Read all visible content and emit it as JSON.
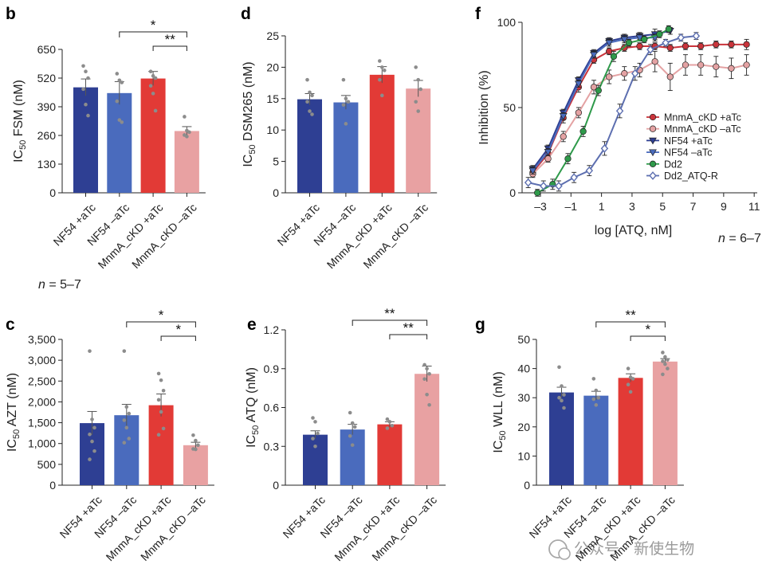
{
  "watermark": "公众号 · 新使生物",
  "notes": {
    "n_bc": "n = 5–7",
    "n_f": "n = 6–7"
  },
  "colors": {
    "nf54_plus": "#2e3f93",
    "nf54_minus": "#4a6bbd",
    "mnma_plus": "#e23a36",
    "mnma_minus": "#e8a1a2",
    "dd2": "#2e9a4a",
    "dd2_atqr": "#5d6fb0",
    "dots": "#8c8c8c",
    "line": "#222222"
  },
  "chart_data": [
    {
      "panel": "b",
      "type": "bar",
      "ylabel_pre": "IC",
      "ylabel_sub": "50",
      "ylabel_post": " FSM (nM)",
      "categories": [
        "NF54 +aTc",
        "NF54 –aTc",
        "MnmA_cKD +aTc",
        "MnmA_cKD –aTc"
      ],
      "values": [
        478,
        452,
        518,
        280
      ],
      "errors": [
        38,
        52,
        32,
        20
      ],
      "points": [
        [
          575,
          550,
          520,
          470,
          400,
          350
        ],
        [
          540,
          510,
          500,
          415,
          330,
          320
        ],
        [
          550,
          530,
          520,
          485,
          450,
          372
        ],
        [
          345,
          282,
          275,
          262,
          255
        ]
      ],
      "yticks": [
        "0",
        "130",
        "260",
        "390",
        "520",
        "650"
      ],
      "ylim": [
        0,
        650
      ],
      "brackets": [
        {
          "from": 1,
          "to": 3,
          "label": "*"
        },
        {
          "from": 2,
          "to": 3,
          "label": "**"
        }
      ]
    },
    {
      "panel": "d",
      "type": "bar",
      "ylabel_pre": "IC",
      "ylabel_sub": "50",
      "ylabel_post": " DSM265 (nM)",
      "categories": [
        "NF54 +aTc",
        "NF54 –aTc",
        "MnmA_cKD +aTc",
        "MnmA_cKD –aTc"
      ],
      "values": [
        14.9,
        14.4,
        18.8,
        16.6
      ],
      "errors": [
        0.9,
        1.1,
        1.3,
        1.3
      ],
      "points": [
        [
          18.0,
          16.0,
          15.5,
          14.5,
          13.0,
          12.5
        ],
        [
          18.0,
          15.0,
          14.5,
          14.0,
          11.0
        ],
        [
          21.0,
          20.0,
          19.5,
          18.0,
          15.5
        ],
        [
          20.0,
          18.0,
          16.5,
          14.5,
          13.0
        ]
      ],
      "yticks": [
        "0",
        "5",
        "10",
        "15",
        "20",
        "25"
      ],
      "ylim": [
        0,
        25
      ],
      "brackets": []
    },
    {
      "panel": "f",
      "type": "line",
      "xlabel": "log [ATQ, nM]",
      "ylabel": "Inhibition (%)",
      "xticks": [
        "–3",
        "–1",
        "1",
        "3",
        "5",
        "7",
        "9",
        "11"
      ],
      "yticks": [
        "0",
        "50",
        "100"
      ],
      "xlim": [
        -4.2,
        11.2
      ],
      "ylim": [
        0,
        100
      ],
      "series": [
        {
          "name": "MnmA_cKD +aTc",
          "marker": "circle",
          "color": "#c9343b",
          "x": [
            -3.5,
            -2.5,
            -1.5,
            -0.5,
            0.5,
            1.5,
            2.5,
            3.5,
            4.5,
            5.5,
            6.5,
            7.5,
            8.5,
            9.5,
            10.5
          ],
          "y": [
            12,
            23,
            44,
            62,
            78,
            83,
            85,
            86,
            86,
            85,
            86,
            86,
            87,
            87,
            87
          ],
          "err": [
            2,
            2,
            3,
            3,
            2,
            2,
            2,
            2,
            2,
            2,
            2,
            2,
            2,
            2,
            3
          ]
        },
        {
          "name": "MnmA_cKD –aTc",
          "marker": "circle",
          "color": "#e4a2a3",
          "x": [
            -3.5,
            -2.5,
            -1.5,
            -0.5,
            0.5,
            1.5,
            2.5,
            3.5,
            4.5,
            5.5,
            6.5,
            7.5,
            8.5,
            9.5,
            10.5
          ],
          "y": [
            11,
            20,
            33,
            47,
            62,
            68,
            70,
            72,
            77,
            68,
            75,
            75,
            74,
            73,
            75
          ],
          "err": [
            2,
            2,
            3,
            3,
            4,
            4,
            4,
            4,
            6,
            8,
            6,
            6,
            6,
            6,
            6
          ]
        },
        {
          "name": "NF54 +aTc",
          "marker": "triangle-down",
          "color": "#2e3f93",
          "x": [
            -3.5,
            -2.5,
            -1.5,
            -0.5,
            0.5,
            1.5,
            2.5,
            3.5,
            4.5,
            5.5
          ],
          "y": [
            14,
            26,
            47,
            66,
            82,
            89,
            91,
            92,
            93,
            95
          ],
          "err": [
            2,
            2,
            2,
            2,
            2,
            2,
            2,
            2,
            3,
            2
          ]
        },
        {
          "name": "NF54 –aTc",
          "marker": "triangle-down",
          "color": "#4a6bbd",
          "x": [
            -3.5,
            -2.5,
            -1.5,
            -0.5,
            0.5,
            1.5,
            2.5,
            3.5,
            4.5
          ],
          "y": [
            13,
            24,
            45,
            64,
            81,
            88,
            90,
            91,
            91
          ],
          "err": [
            2,
            2,
            2,
            2,
            2,
            2,
            2,
            2,
            2
          ]
        },
        {
          "name": "Dd2",
          "marker": "circle",
          "color": "#2e9a4a",
          "x": [
            -3.2,
            -2.2,
            -1.2,
            -0.2,
            0.8,
            1.8,
            2.8,
            3.8,
            4.8,
            5.4
          ],
          "y": [
            0,
            5,
            20,
            36,
            60,
            80,
            88,
            90,
            93,
            96
          ],
          "err": [
            2,
            3,
            3,
            3,
            3,
            3,
            2,
            2,
            2,
            2
          ]
        },
        {
          "name": "Dd2_ATQ-R",
          "marker": "diamond",
          "color": "#5d6fb0",
          "x": [
            -3.8,
            -2.8,
            -1.8,
            -0.8,
            0.2,
            1.2,
            2.2,
            3.2,
            4.2,
            5.2,
            6.2,
            7.2
          ],
          "y": [
            6,
            4,
            4,
            9,
            13,
            26,
            48,
            70,
            84,
            88,
            91,
            92
          ],
          "err": [
            3,
            3,
            3,
            3,
            3,
            4,
            4,
            4,
            3,
            2,
            2,
            2
          ]
        }
      ]
    },
    {
      "panel": "c",
      "type": "bar",
      "ylabel_pre": "IC",
      "ylabel_sub": "50",
      "ylabel_post": " AZT (nM)",
      "categories": [
        "NF54 +aTc",
        "NF54 –aTc",
        "MnmA_cKD +aTc",
        "MnmA_cKD –aTc"
      ],
      "values": [
        1490,
        1680,
        1920,
        960
      ],
      "errors": [
        280,
        260,
        270,
        70
      ],
      "points": [
        [
          3220,
          1580,
          1380,
          1220,
          1050,
          820,
          620
        ],
        [
          3220,
          1880,
          1720,
          1560,
          1380,
          1120,
          1020
        ],
        [
          2680,
          2520,
          2270,
          2050,
          1760,
          1360,
          1210
        ],
        [
          1200,
          1070,
          960,
          870,
          860
        ]
      ],
      "yticks": [
        "0",
        "500",
        "1,000",
        "1,500",
        "2,000",
        "2,500",
        "3,000",
        "3,500"
      ],
      "ylim": [
        0,
        3500
      ],
      "brackets": [
        {
          "from": 1,
          "to": 3,
          "label": "*"
        },
        {
          "from": 2,
          "to": 3,
          "label": "*"
        }
      ]
    },
    {
      "panel": "e",
      "type": "bar",
      "ylabel_pre": "IC",
      "ylabel_sub": "50",
      "ylabel_post": " ATQ (nM)",
      "categories": [
        "NF54 +aTc",
        "NF54 –aTc",
        "MnmA_cKD +aTc",
        "MnmA_cKD –aTc"
      ],
      "values": [
        0.39,
        0.43,
        0.47,
        0.86
      ],
      "errors": [
        0.03,
        0.04,
        0.02,
        0.06
      ],
      "points": [
        [
          0.52,
          0.49,
          0.4,
          0.36,
          0.3
        ],
        [
          0.56,
          0.48,
          0.45,
          0.38,
          0.31
        ],
        [
          0.51,
          0.49,
          0.46,
          0.44
        ],
        [
          0.93,
          0.9,
          0.86,
          0.82,
          0.7,
          0.62
        ]
      ],
      "yticks": [
        "0",
        "0.3",
        "0.6",
        "0.9",
        "1.2"
      ],
      "ylim": [
        0,
        1.2
      ],
      "brackets": [
        {
          "from": 1,
          "to": 3,
          "label": "**"
        },
        {
          "from": 2,
          "to": 3,
          "label": "**"
        }
      ]
    },
    {
      "panel": "g",
      "type": "bar",
      "ylabel_pre": "IC",
      "ylabel_sub": "50",
      "ylabel_post": " WLL (nM)",
      "categories": [
        "NF54 +aTc",
        "NF54 –aTc",
        "MnmA_cKD +aTc",
        "MnmA_cKD –aTc"
      ],
      "values": [
        31.8,
        30.7,
        36.8,
        42.4
      ],
      "errors": [
        1.8,
        1.5,
        1.4,
        1.0
      ],
      "points": [
        [
          40.5,
          34.0,
          31.0,
          30.0,
          29.0,
          26.5
        ],
        [
          36.5,
          32.5,
          30.0,
          29.5,
          27.5
        ],
        [
          40.0,
          37.0,
          36.5,
          34.5,
          32.0
        ],
        [
          45.5,
          44.0,
          43.0,
          42.5,
          41.5,
          40.0,
          38.0
        ]
      ],
      "yticks": [
        "0",
        "10",
        "20",
        "30",
        "40",
        "50"
      ],
      "ylim": [
        0,
        50
      ],
      "brackets": [
        {
          "from": 1,
          "to": 3,
          "label": "**"
        },
        {
          "from": 2,
          "to": 3,
          "label": "*"
        }
      ]
    }
  ]
}
